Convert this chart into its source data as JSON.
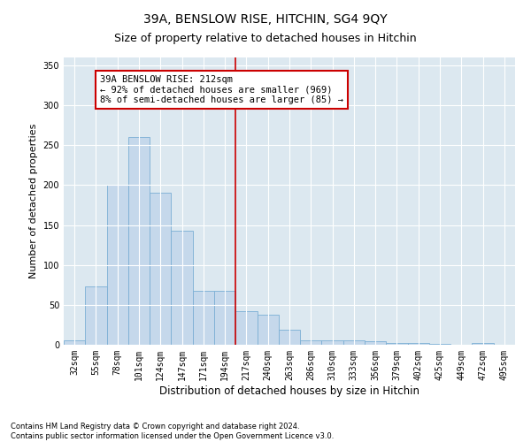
{
  "title": "39A, BENSLOW RISE, HITCHIN, SG4 9QY",
  "subtitle": "Size of property relative to detached houses in Hitchin",
  "xlabel": "Distribution of detached houses by size in Hitchin",
  "ylabel": "Number of detached properties",
  "categories": [
    "32sqm",
    "55sqm",
    "78sqm",
    "101sqm",
    "124sqm",
    "147sqm",
    "171sqm",
    "194sqm",
    "217sqm",
    "240sqm",
    "263sqm",
    "286sqm",
    "310sqm",
    "333sqm",
    "356sqm",
    "379sqm",
    "402sqm",
    "425sqm",
    "449sqm",
    "472sqm",
    "495sqm"
  ],
  "values": [
    6,
    73,
    200,
    260,
    190,
    143,
    68,
    68,
    42,
    38,
    19,
    6,
    6,
    6,
    4,
    2,
    2,
    1,
    0,
    2,
    0
  ],
  "bar_color": "#c5d8eb",
  "bar_edge_color": "#7bafd4",
  "vline_color": "#cc0000",
  "annotation_text": "39A BENSLOW RISE: 212sqm\n← 92% of detached houses are smaller (969)\n8% of semi-detached houses are larger (85) →",
  "annotation_box_color": "#cc0000",
  "ylim": [
    0,
    360
  ],
  "yticks": [
    0,
    50,
    100,
    150,
    200,
    250,
    300,
    350
  ],
  "background_color": "#dce8f0",
  "footer_line1": "Contains HM Land Registry data © Crown copyright and database right 2024.",
  "footer_line2": "Contains public sector information licensed under the Open Government Licence v3.0.",
  "title_fontsize": 10,
  "subtitle_fontsize": 9,
  "annotation_fontsize": 7.5,
  "tick_fontsize": 7,
  "ylabel_fontsize": 8,
  "xlabel_fontsize": 8.5
}
